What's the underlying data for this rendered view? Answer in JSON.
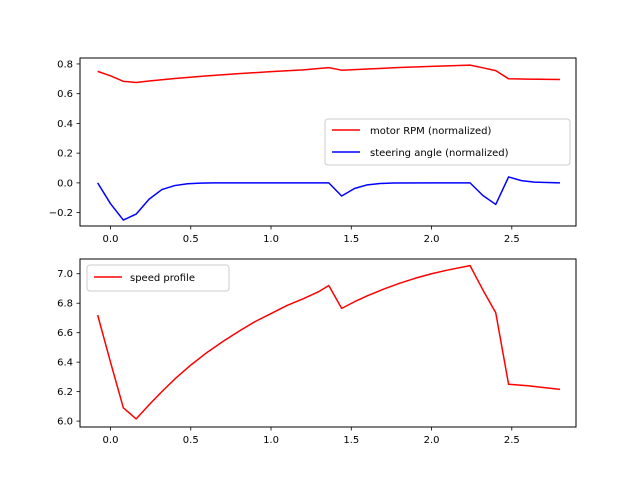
{
  "chart_data": [
    {
      "type": "line",
      "xlim": [
        -0.19,
        2.9
      ],
      "ylim": [
        -0.29,
        0.84
      ],
      "xticks": [
        0.0,
        0.5,
        1.0,
        1.5,
        2.0,
        2.5
      ],
      "xtick_labels": [
        "0.0",
        "0.5",
        "1.0",
        "1.5",
        "2.0",
        "2.5"
      ],
      "yticks": [
        -0.2,
        0.0,
        0.2,
        0.4,
        0.6,
        0.8
      ],
      "ytick_labels": [
        "−0.2",
        "0.0",
        "0.2",
        "0.4",
        "0.6",
        "0.8"
      ],
      "grid": false,
      "legend_position": "center-right",
      "series": [
        {
          "name": "motor RPM (normalized)",
          "color": "#ff0000",
          "x": [
            -0.08,
            0.0,
            0.08,
            0.16,
            0.24,
            0.32,
            0.4,
            0.6,
            0.8,
            1.0,
            1.2,
            1.36,
            1.44,
            1.6,
            1.8,
            2.0,
            2.24,
            2.32,
            2.4,
            2.48,
            2.6,
            2.8
          ],
          "y": [
            0.75,
            0.72,
            0.683,
            0.675,
            0.685,
            0.694,
            0.702,
            0.72,
            0.735,
            0.748,
            0.76,
            0.775,
            0.758,
            0.766,
            0.776,
            0.784,
            0.792,
            0.774,
            0.755,
            0.7,
            0.698,
            0.695
          ]
        },
        {
          "name": "steering angle (normalized)",
          "color": "#0000ff",
          "x": [
            -0.08,
            0.0,
            0.08,
            0.16,
            0.24,
            0.32,
            0.4,
            0.48,
            0.56,
            0.64,
            0.8,
            1.0,
            1.2,
            1.36,
            1.44,
            1.52,
            1.6,
            1.68,
            1.76,
            2.0,
            2.24,
            2.32,
            2.4,
            2.48,
            2.56,
            2.64,
            2.8
          ],
          "y": [
            0.0,
            -0.14,
            -0.25,
            -0.21,
            -0.11,
            -0.045,
            -0.018,
            -0.006,
            -0.002,
            0.0,
            0.0,
            0.0,
            0.0,
            0.0,
            -0.088,
            -0.038,
            -0.013,
            -0.004,
            -0.001,
            0.0,
            0.0,
            -0.085,
            -0.145,
            0.04,
            0.015,
            0.005,
            0.0
          ]
        }
      ]
    },
    {
      "type": "line",
      "xlim": [
        -0.19,
        2.9
      ],
      "ylim": [
        5.96,
        7.1
      ],
      "xticks": [
        0.0,
        0.5,
        1.0,
        1.5,
        2.0,
        2.5
      ],
      "xtick_labels": [
        "0.0",
        "0.5",
        "1.0",
        "1.5",
        "2.0",
        "2.5"
      ],
      "yticks": [
        6.0,
        6.2,
        6.4,
        6.6,
        6.8,
        7.0
      ],
      "ytick_labels": [
        "6.0",
        "6.2",
        "6.4",
        "6.6",
        "6.8",
        "7.0"
      ],
      "grid": false,
      "legend_position": "top-left",
      "series": [
        {
          "name": "speed profile",
          "color": "#ff0000",
          "x": [
            -0.08,
            0.0,
            0.08,
            0.16,
            0.24,
            0.32,
            0.4,
            0.5,
            0.6,
            0.7,
            0.8,
            0.9,
            1.0,
            1.1,
            1.2,
            1.3,
            1.36,
            1.44,
            1.52,
            1.6,
            1.7,
            1.8,
            1.9,
            2.0,
            2.1,
            2.24,
            2.32,
            2.4,
            2.48,
            2.6,
            2.8
          ],
          "y": [
            6.72,
            6.4,
            6.09,
            6.015,
            6.11,
            6.2,
            6.285,
            6.38,
            6.465,
            6.54,
            6.61,
            6.675,
            6.73,
            6.785,
            6.83,
            6.88,
            6.92,
            6.765,
            6.81,
            6.85,
            6.895,
            6.935,
            6.97,
            7.0,
            7.025,
            7.055,
            6.89,
            6.735,
            6.25,
            6.24,
            6.215
          ]
        }
      ]
    }
  ]
}
